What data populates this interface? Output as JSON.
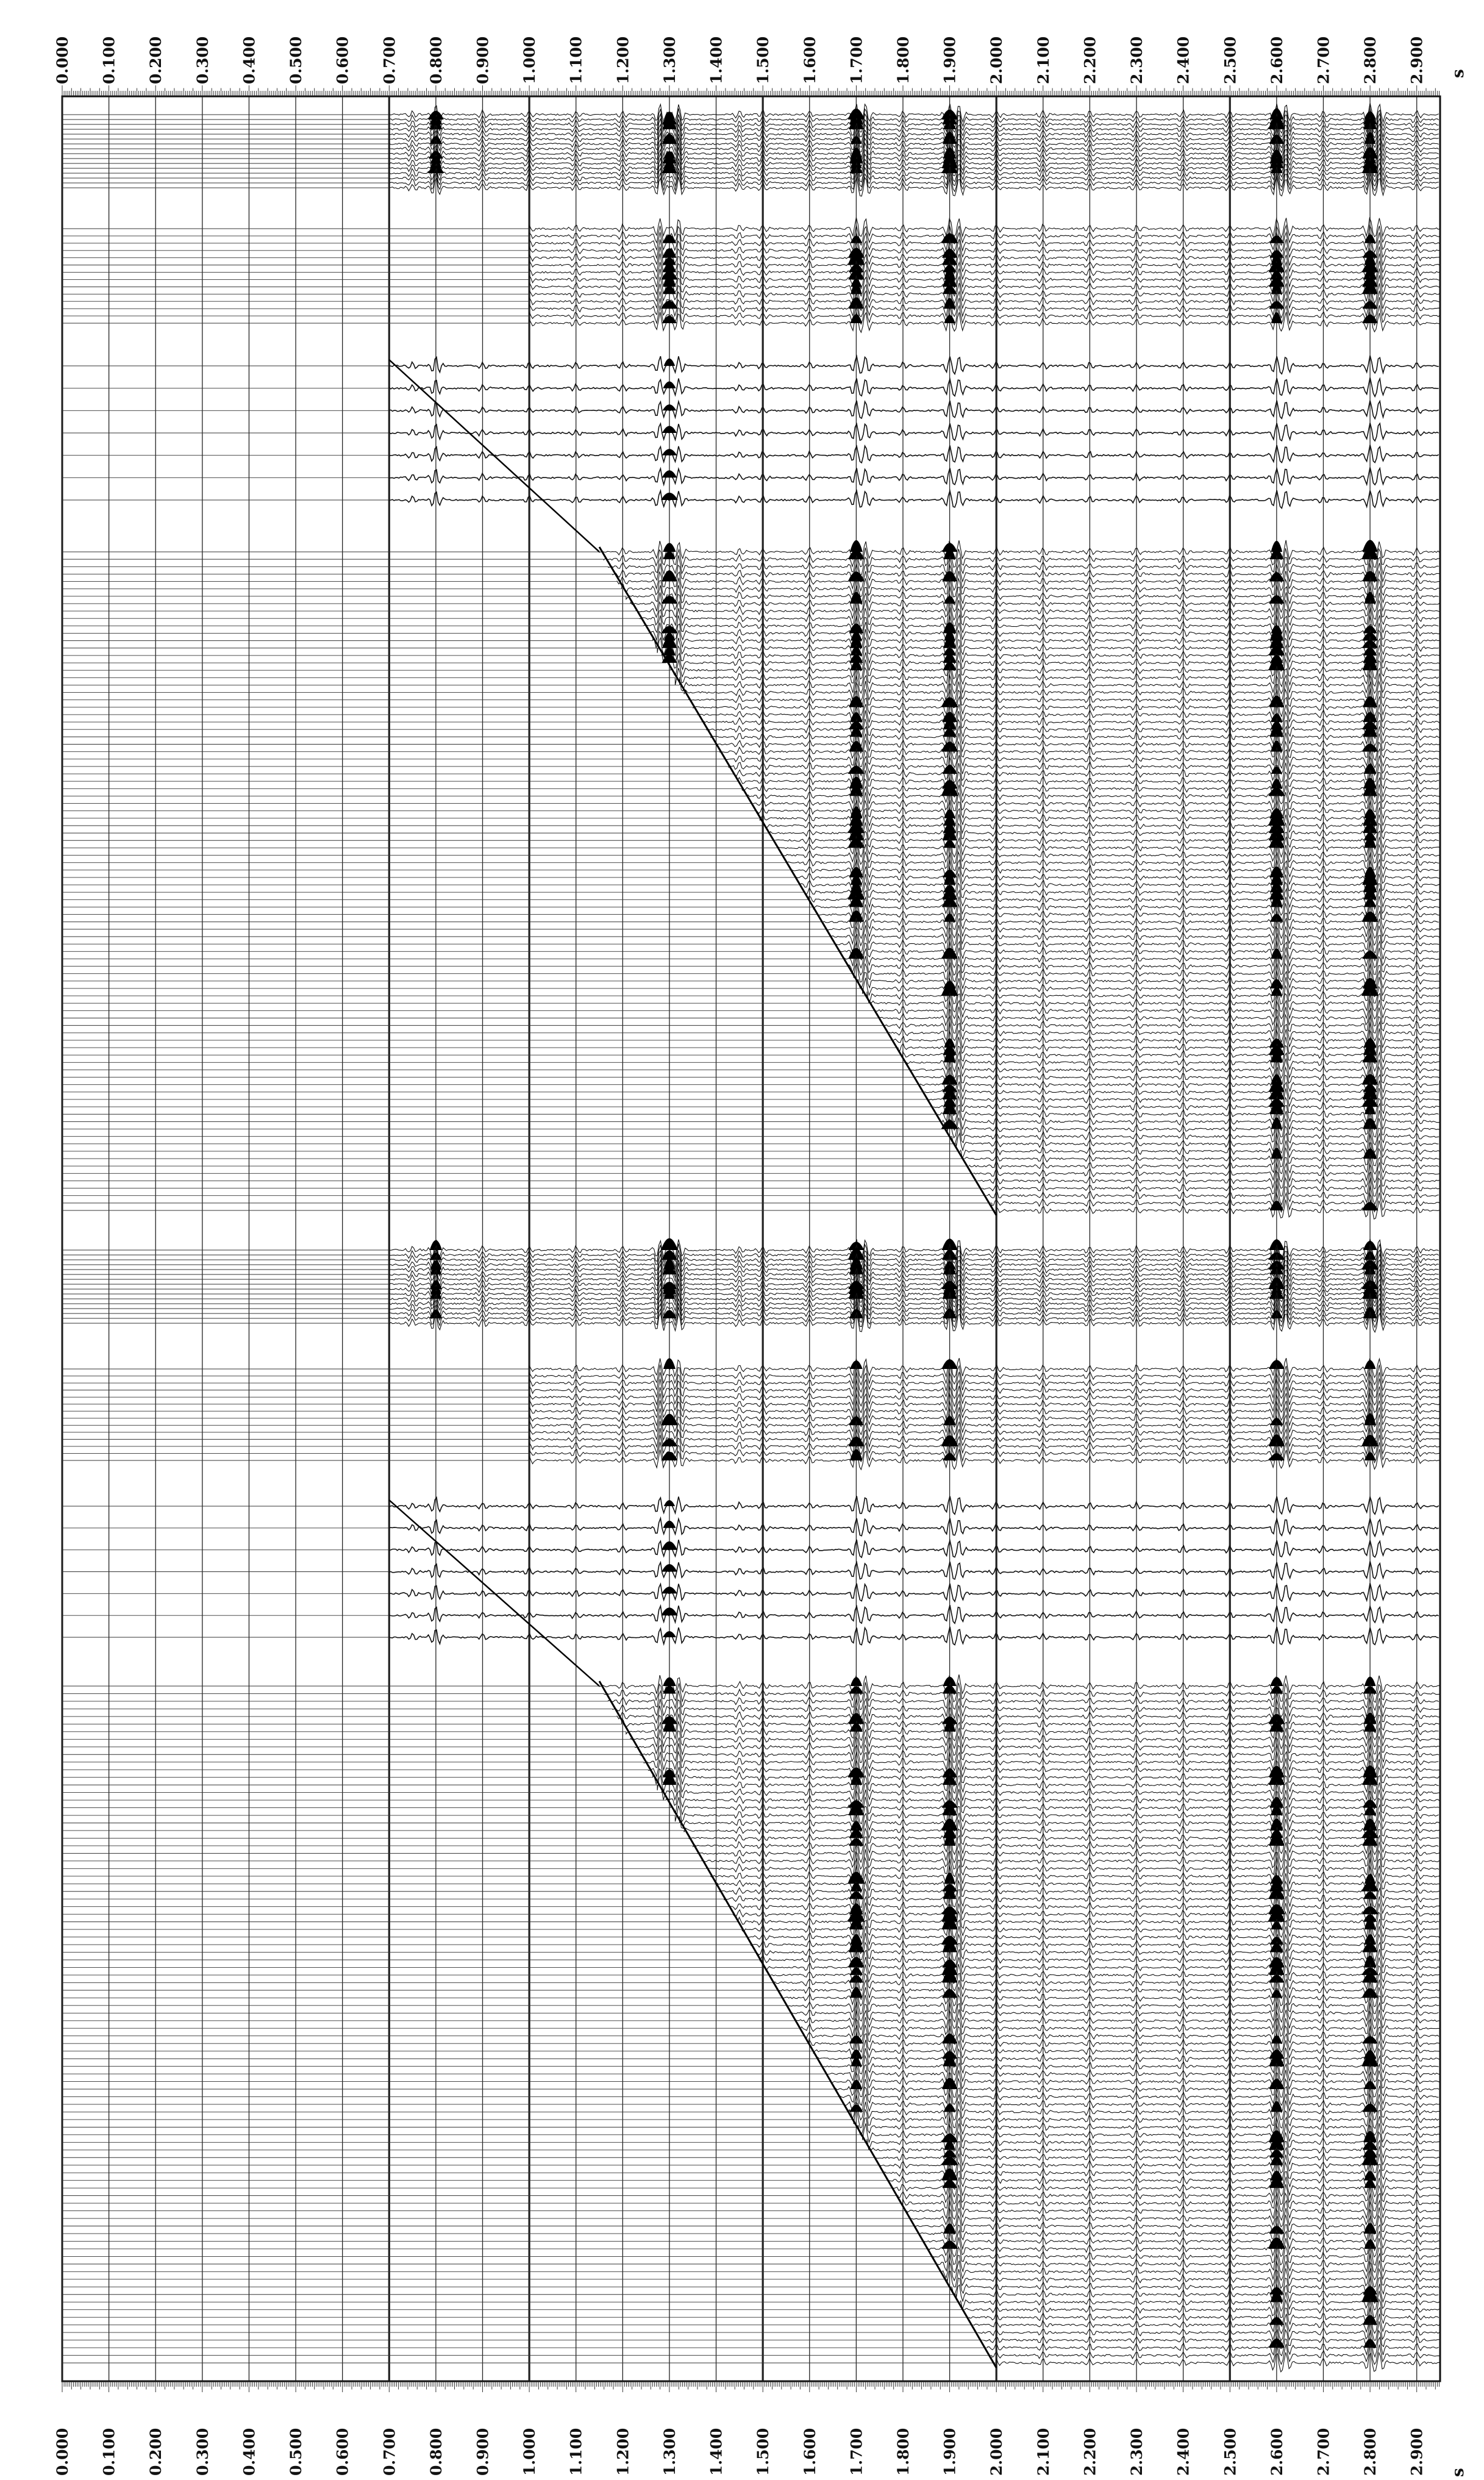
{
  "chart_data": {
    "type": "seismic-wiggle",
    "title": "",
    "time_unit": "s",
    "time_axis_label": "s",
    "time_range": [
      0.0,
      2.95
    ],
    "tick_values": [
      0.0,
      0.1,
      0.2,
      0.3,
      0.4,
      0.5,
      0.6,
      0.7,
      0.8,
      0.9,
      1.0,
      1.1,
      1.2,
      1.3,
      1.4,
      1.5,
      1.6,
      1.7,
      1.8,
      1.9,
      2.0,
      2.1,
      2.2,
      2.3,
      2.4,
      2.5,
      2.6,
      2.7,
      2.8,
      2.9
    ],
    "tick_labels": [
      "0.000",
      "0.100",
      "0.200",
      "0.300",
      "0.400",
      "0.500",
      "0.600",
      "0.700",
      "0.800",
      "0.900",
      "1.000",
      "1.100",
      "1.200",
      "1.300",
      "1.400",
      "1.500",
      "1.600",
      "1.700",
      "1.800",
      "1.900",
      "2.000",
      "2.100",
      "2.200",
      "2.300",
      "2.400",
      "2.500",
      "2.600",
      "2.700",
      "2.800",
      "2.900"
    ],
    "major_gridline_times": [
      0.7,
      1.0,
      1.5,
      2.0,
      2.5
    ],
    "minor_gridline_interval": 0.1,
    "orientation": "time increases left to right; traces stacked vertically",
    "panels": [
      {
        "name": "upper",
        "gathers": [
          {
            "kind": "stack",
            "traces": 16,
            "start_time": 0.7
          },
          {
            "kind": "stack",
            "traces": 14,
            "start_time": 1.0
          },
          {
            "kind": "sparse",
            "traces": 7,
            "start_time": 0.7
          },
          {
            "kind": "dense-triangle",
            "traces": 90,
            "onset_start": 1.15,
            "onset_end": 2.0
          }
        ],
        "strong_events": [
          0.8,
          1.3,
          1.7,
          1.9,
          2.6,
          2.8
        ]
      },
      {
        "name": "lower",
        "gathers": [
          {
            "kind": "stack",
            "traces": 16,
            "start_time": 0.7
          },
          {
            "kind": "stack",
            "traces": 14,
            "start_time": 1.0
          },
          {
            "kind": "sparse",
            "traces": 7,
            "start_time": 0.7
          },
          {
            "kind": "dense-triangle",
            "traces": 90,
            "onset_start": 1.15,
            "onset_end": 2.0
          }
        ],
        "strong_events": [
          0.8,
          1.3,
          1.7,
          1.9,
          2.6,
          2.8
        ]
      }
    ]
  }
}
